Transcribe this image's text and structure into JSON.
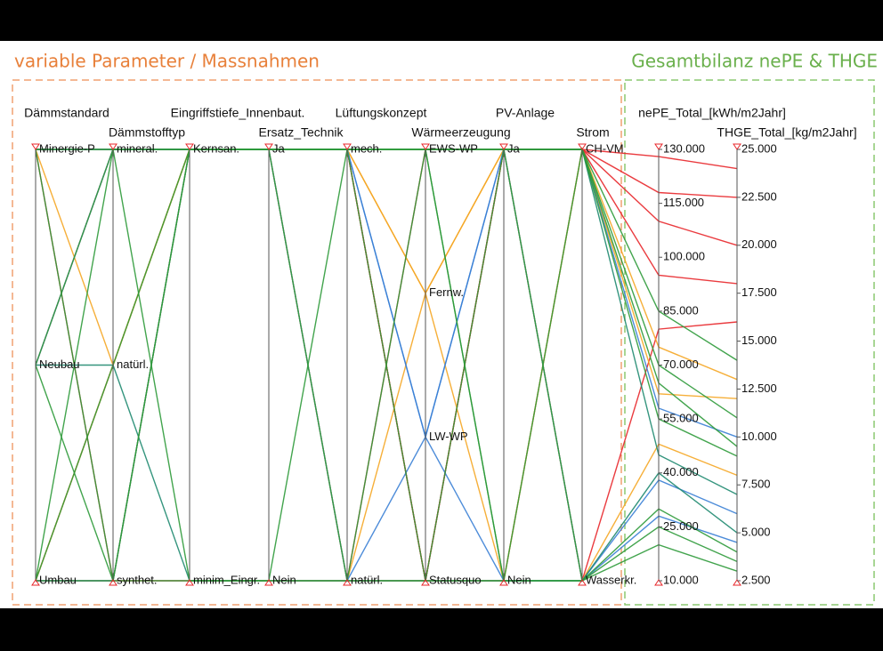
{
  "chart_data": {
    "type": "parallel",
    "annotations": [
      "variable Parameter / Massnahmen",
      "Gesamtbilanz nePE & THGE"
    ],
    "dimensions": [
      {
        "name": "Dämmstandard",
        "categories": [
          "Minergie-P",
          "Neubau",
          "Umbau"
        ]
      },
      {
        "name": "Dämmstofftyp",
        "categories": [
          "mineral.",
          "natürl.",
          "synthet."
        ]
      },
      {
        "name": "Eingriffstiefe_Innenbaut.",
        "categories": [
          "Kernsan.",
          "minim_Eingr."
        ]
      },
      {
        "name": "Ersatz_Technik",
        "categories": [
          "Ja",
          "Nein"
        ]
      },
      {
        "name": "Lüftungskonzept",
        "categories": [
          "mech.",
          "natürl."
        ]
      },
      {
        "name": "Wärmeerzeugung",
        "categories": [
          "EWS-WP",
          "Fernw.",
          "LW-WP",
          "Statusquo"
        ]
      },
      {
        "name": "PV-Anlage",
        "categories": [
          "Ja",
          "Nein"
        ]
      },
      {
        "name": "Strom",
        "categories": [
          "CH-VM",
          "Wasserkr."
        ]
      },
      {
        "name": "nePE_Total_[kWh/m2Jahr]",
        "ylim": [
          10,
          130
        ],
        "yticks": [
          {
            "value": 10,
            "label": "10.000"
          },
          {
            "value": 25,
            "label": "25.000"
          },
          {
            "value": 40,
            "label": "40.000"
          },
          {
            "value": 55,
            "label": "55.000"
          },
          {
            "value": 70,
            "label": "70.000"
          },
          {
            "value": 85,
            "label": "85.000"
          },
          {
            "value": 100,
            "label": "100.000"
          },
          {
            "value": 115,
            "label": "115.000"
          },
          {
            "value": 130,
            "label": "130.000"
          }
        ]
      },
      {
        "name": "THGE_Total_[kg/m2Jahr]",
        "ylim": [
          2.5,
          25
        ],
        "yticks": [
          {
            "value": 2.5,
            "label": "2.500"
          },
          {
            "value": 5,
            "label": "5.000"
          },
          {
            "value": 7.5,
            "label": "7.500"
          },
          {
            "value": 10,
            "label": "10.000"
          },
          {
            "value": 12.5,
            "label": "12.500"
          },
          {
            "value": 15,
            "label": "15.000"
          },
          {
            "value": 17.5,
            "label": "17.500"
          },
          {
            "value": 20,
            "label": "20.000"
          },
          {
            "value": 22.5,
            "label": "22.500"
          },
          {
            "value": 25,
            "label": "25.000"
          }
        ]
      }
    ],
    "lines": [
      {
        "color": "#e8262a",
        "values": [
          "Minergie-P",
          "mineral.",
          "Kernsan.",
          "Ja",
          "mech.",
          "Statusquo",
          "Ja",
          "CH-VM",
          110,
          20
        ]
      },
      {
        "color": "#e8262a",
        "values": [
          "Umbau",
          "synthet.",
          "minim_Eingr.",
          "Nein",
          "natürl.",
          "Statusquo",
          "Nein",
          "CH-VM",
          128,
          24
        ]
      },
      {
        "color": "#e8262a",
        "values": [
          "Neubau",
          "mineral.",
          "Kernsan.",
          "Ja",
          "natürl.",
          "EWS-WP",
          "Ja",
          "CH-VM",
          95,
          18
        ]
      },
      {
        "color": "#e8262a",
        "values": [
          "Umbau",
          "natürl.",
          "Kernsan.",
          "Ja",
          "mech.",
          "Statusquo",
          "Ja",
          "Wasserkr.",
          80,
          16
        ]
      },
      {
        "color": "#e8262a",
        "values": [
          "Minergie-P",
          "synthet.",
          "Kernsan.",
          "Ja",
          "mech.",
          "Statusquo",
          "Ja",
          "CH-VM",
          118,
          22.5
        ]
      },
      {
        "color": "#f5a623",
        "values": [
          "Minergie-P",
          "mineral.",
          "Kernsan.",
          "Ja",
          "mech.",
          "Fernw.",
          "Ja",
          "CH-VM",
          62,
          12
        ]
      },
      {
        "color": "#f5a623",
        "values": [
          "Umbau",
          "natürl.",
          "Kernsan.",
          "Ja",
          "natürl.",
          "Fernw.",
          "Ja",
          "Wasserkr.",
          48,
          8
        ]
      },
      {
        "color": "#f5a623",
        "values": [
          "Minergie-P",
          "natürl.",
          "Kernsan.",
          "Ja",
          "mech.",
          "Fernw.",
          "Nein",
          "CH-VM",
          75,
          13
        ]
      },
      {
        "color": "#3a7fd5",
        "values": [
          "Minergie-P",
          "mineral.",
          "Kernsan.",
          "Ja",
          "mech.",
          "LW-WP",
          "Nein",
          "Wasserkr.",
          28,
          4.5
        ]
      },
      {
        "color": "#3a7fd5",
        "values": [
          "Umbau",
          "synthet.",
          "Kernsan.",
          "Ja",
          "natürl.",
          "LW-WP",
          "Ja",
          "Wasserkr.",
          38,
          6
        ]
      },
      {
        "color": "#3a7fd5",
        "values": [
          "Neubau",
          "mineral.",
          "Kernsan.",
          "Ja",
          "mech.",
          "LW-WP",
          "Ja",
          "CH-VM",
          58,
          10
        ]
      },
      {
        "color": "#1f8a70",
        "values": [
          "Minergie-P",
          "mineral.",
          "Kernsan.",
          "Ja",
          "mech.",
          "EWS-WP",
          "Ja",
          "CH-VM",
          45,
          7
        ]
      },
      {
        "color": "#1f8a70",
        "values": [
          "Neubau",
          "natürl.",
          "minim_Eingr.",
          "Nein",
          "natürl.",
          "Statusquo",
          "Nein",
          "Wasserkr.",
          40,
          5
        ]
      },
      {
        "color": "#2e9a3a",
        "values": [
          "Minergie-P",
          "mineral.",
          "Kernsan.",
          "Ja",
          "mech.",
          "EWS-WP",
          "Ja",
          "CH-VM",
          55,
          9
        ]
      },
      {
        "color": "#2e9a3a",
        "values": [
          "Neubau",
          "synthet.",
          "minim_Eingr.",
          "Nein",
          "natürl.",
          "Statusquo",
          "Nein",
          "Wasserkr.",
          30,
          4
        ]
      },
      {
        "color": "#2e9a3a",
        "values": [
          "Umbau",
          "natürl.",
          "Kernsan.",
          "Ja",
          "mech.",
          "EWS-WP",
          "Nein",
          "CH-VM",
          70,
          11
        ]
      },
      {
        "color": "#2e9a3a",
        "values": [
          "Minergie-P",
          "synthet.",
          "Kernsan.",
          "Ja",
          "natürl.",
          "EWS-WP",
          "Ja",
          "Wasserkr.",
          25,
          3.5
        ]
      },
      {
        "color": "#2e9a3a",
        "values": [
          "Umbau",
          "mineral.",
          "minim_Eingr.",
          "Nein",
          "mech.",
          "Statusquo",
          "Ja",
          "CH-VM",
          85,
          14
        ]
      },
      {
        "color": "#2e9a3a",
        "values": [
          "Neubau",
          "mineral.",
          "Kernsan.",
          "Ja",
          "mech.",
          "EWS-WP",
          "Nein",
          "Wasserkr.",
          20,
          3
        ]
      },
      {
        "color": "#2e9a3a",
        "values": [
          "Umbau",
          "synthet.",
          "Kernsan.",
          "Ja",
          "mech.",
          "EWS-WP",
          "Ja",
          "CH-VM",
          65,
          9.5
        ]
      }
    ]
  }
}
